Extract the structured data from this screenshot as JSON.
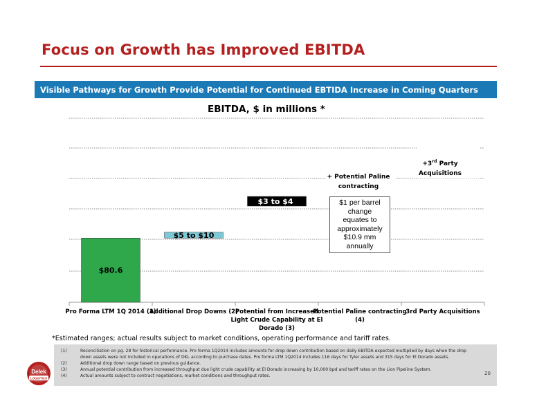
{
  "page": {
    "title": "Focus on Growth has Improved EBITDA",
    "banner": "Visible Pathways for Growth Provide Potential for Continued EBTIDA Increase in Coming Quarters",
    "page_number": "20",
    "footnote": "*Estimated ranges; actual results subject to market conditions, operating performance and tariff rates.",
    "notes": [
      {
        "num": "(1)",
        "lines": [
          "Reconciliation on pg. 28 for historical performance. Pro forma 1Q2014 includes amounts for drop down contribution based on daily EBITDA expected multiplied by days when the drop",
          "down assets were not included in operations of DKL according to purchase dates. Pro forma LTM 1Q2014 includes 116 days for Tyler assets and 315 days for El Dorado assets."
        ]
      },
      {
        "num": "(2)",
        "lines": [
          "Additional drop down range based on previous guidance."
        ]
      },
      {
        "num": "(3)",
        "lines": [
          "Annual potential contribution from increased throughput due light crude capability at El Dorado increasing by 10,000 bpd and tariff rates on the Lion Pipeline System."
        ]
      },
      {
        "num": "(4)",
        "lines": [
          "Actual amounts subject to contract negotiations, market conditions and throughput rates."
        ]
      }
    ],
    "logo_text": "Delek",
    "logo_subtext": "LOGISTICS"
  },
  "chart_data": {
    "type": "bar",
    "title": "EBITDA, $ in millions *",
    "categories": [
      [
        "Pro Forma LTM 1Q 2014 (1)"
      ],
      [
        "Additional Drop Downs (2)"
      ],
      [
        "Potential from Increased",
        "Light Crude Capability at El",
        "Dorado (3)"
      ],
      [
        "Potential Paline contracting",
        "(4)"
      ],
      [
        "3rd Party Acquisitions"
      ]
    ],
    "bars": [
      {
        "label": "$80.6",
        "base": 0,
        "value": 80.6,
        "color": "#2ea84a"
      },
      {
        "label": "$5 to $10",
        "base": 80.6,
        "value": 7.5,
        "color": "#7cc8d6"
      },
      {
        "label": "$3 to $4",
        "base": 88.1,
        "value": 3.5,
        "color": "#000000"
      }
    ],
    "annotations": [
      {
        "category": 3,
        "lines": [
          "+ Potential Paline",
          "contracting"
        ]
      },
      {
        "category": 4,
        "lines": [
          "+3",
          "rd",
          " Party",
          "Acquisitions"
        ]
      }
    ],
    "callout": [
      "$1 per barrel",
      "change",
      "equates to",
      "approximately",
      "$10.9 mm",
      "annually"
    ],
    "grid": true
  }
}
